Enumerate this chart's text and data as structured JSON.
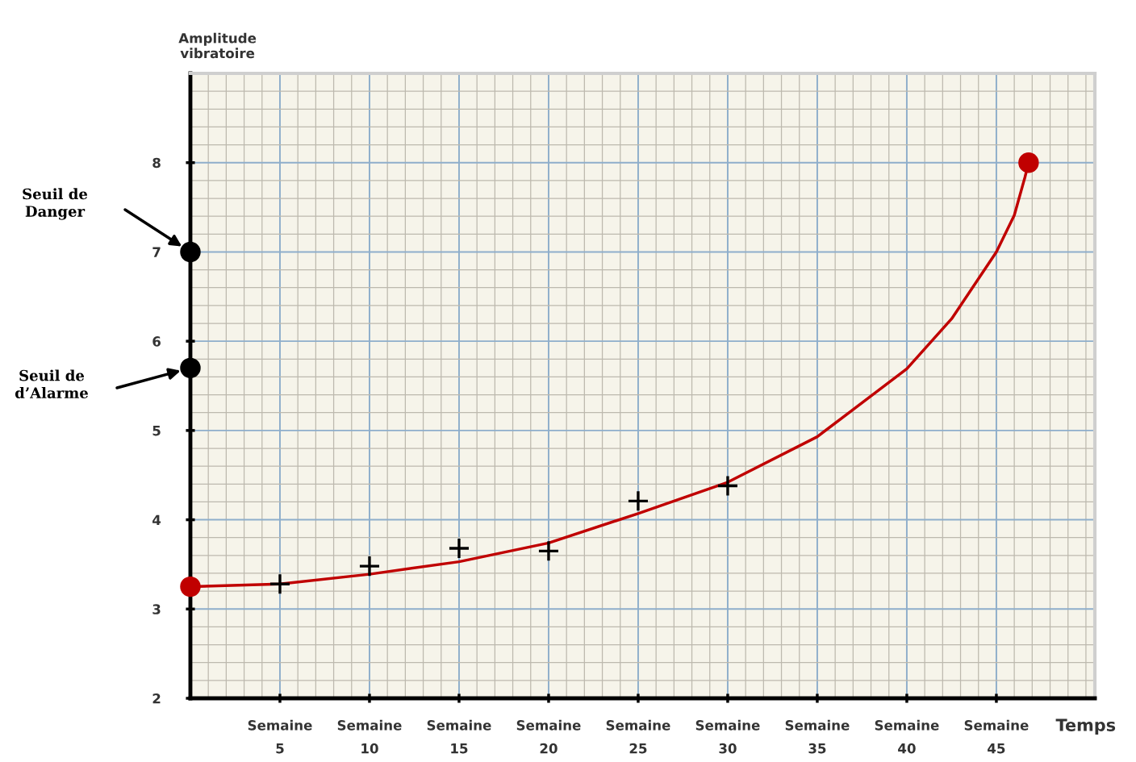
{
  "chart_data": {
    "type": "line",
    "xlabel": "Temps",
    "ylabel": "Amplitude\nvibratoire",
    "xlim": [
      0,
      50.5
    ],
    "ylim": [
      2,
      9
    ],
    "xticks": [
      5,
      10,
      15,
      20,
      25,
      30,
      35,
      40,
      45
    ],
    "yticks": [
      2,
      3,
      4,
      5,
      6,
      7,
      8
    ],
    "grid": true,
    "legend": false,
    "series": [
      {
        "color": "#c00000",
        "marker": "none",
        "line_style": "solid",
        "x": [
          0,
          5,
          10,
          15,
          20,
          25,
          30,
          35,
          40,
          42.5,
          45,
          46,
          46.6,
          46.8
        ],
        "values": [
          3.25,
          3.28,
          3.39,
          3.53,
          3.74,
          4.07,
          4.42,
          4.93,
          5.69,
          6.25,
          7.0,
          7.41,
          7.84,
          8.0
        ]
      },
      {
        "type": "scatter",
        "color": "#c00000",
        "marker": "circle",
        "x": [
          0,
          46.8
        ],
        "values": [
          3.25,
          8.0
        ]
      },
      {
        "type": "scatter",
        "color": "#000000",
        "marker": "cross",
        "x": [
          5,
          10,
          15,
          20,
          25,
          30
        ],
        "values": [
          3.28,
          3.48,
          3.68,
          3.65,
          4.21,
          4.38
        ]
      },
      {
        "type": "scatter",
        "color": "#000000",
        "marker": "circle",
        "x": [
          0,
          0
        ],
        "values": [
          7.0,
          5.7
        ]
      }
    ],
    "annotations": [
      "Seuil de\nDanger",
      "Seuil de\nd’Alarme",
      "Semaine",
      "Semaine",
      "Semaine",
      "Semaine",
      "Semaine",
      "Semaine",
      "Semaine",
      "Semaine",
      "Semaine"
    ]
  }
}
